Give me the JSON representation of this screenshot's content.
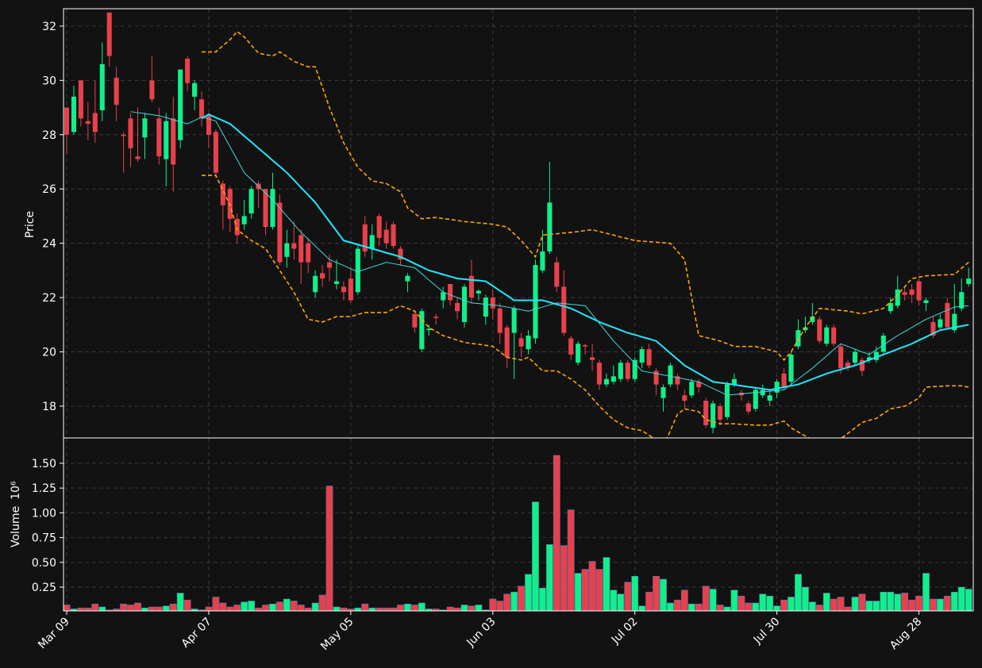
{
  "chart_data": {
    "type": "candlestick",
    "ylabel": "Price",
    "grid": true,
    "up_color": "#0ef18a",
    "down_color": "#e8414b",
    "ylim": [
      16.83,
      32.64
    ],
    "yticks": [
      18,
      20,
      22,
      24,
      26,
      28,
      30,
      32
    ],
    "categories": [
      "Mar 09",
      null,
      null,
      null,
      null,
      null,
      null,
      null,
      null,
      null,
      null,
      null,
      null,
      null,
      null,
      null,
      null,
      null,
      null,
      null,
      "Apr 07",
      null,
      null,
      null,
      null,
      null,
      null,
      null,
      null,
      null,
      null,
      null,
      null,
      null,
      null,
      null,
      null,
      null,
      null,
      null,
      "May 05",
      null,
      null,
      null,
      null,
      null,
      null,
      null,
      null,
      null,
      null,
      null,
      null,
      null,
      null,
      null,
      null,
      null,
      null,
      null,
      "Jun 03",
      null,
      null,
      null,
      null,
      null,
      null,
      null,
      null,
      null,
      null,
      null,
      null,
      null,
      null,
      null,
      null,
      null,
      null,
      null,
      "Jul 02",
      null,
      null,
      null,
      null,
      null,
      null,
      null,
      null,
      null,
      null,
      null,
      null,
      null,
      null,
      null,
      null,
      null,
      null,
      null,
      "Jul 30",
      null,
      null,
      null,
      null,
      null,
      null,
      null,
      null,
      null,
      null,
      null,
      null,
      null,
      null,
      null,
      null,
      null,
      null,
      null,
      "Aug 28",
      null,
      null,
      null,
      null,
      null,
      null,
      null
    ],
    "open": [
      29.0,
      28.1,
      30.0,
      28.5,
      28.8,
      28.9,
      32.5,
      30.1,
      28.0,
      28.6,
      27.2,
      27.9,
      30.0,
      28.6,
      27.1,
      28.6,
      27.8,
      30.8,
      29.4,
      29.3,
      28.7,
      28.1,
      26.2,
      26.0,
      24.9,
      24.7,
      25.1,
      26.2,
      26.0,
      24.6,
      25.5,
      23.5,
      24.0,
      24.3,
      24.0,
      22.2,
      22.9,
      23.3,
      22.5,
      22.4,
      22.7,
      22.2,
      24.7,
      23.8,
      25.0,
      24.5,
      24.7,
      23.8,
      22.6,
      21.4,
      20.1,
      20.8,
      21.3,
      21.9,
      22.5,
      21.8,
      21.1,
      22.8,
      22.15,
      21.3,
      22.0,
      21.6,
      20.9,
      20.7,
      20.5,
      20.1,
      20.5,
      23.0,
      23.7,
      23.3,
      22.4,
      20.5,
      19.6,
      20.25,
      19.8,
      19.6,
      18.8,
      18.9,
      19.0,
      19.6,
      19.0,
      19.6,
      20.1,
      19.3,
      18.3,
      18.8,
      19.1,
      18.4,
      18.4,
      18.9,
      18.2,
      17.2,
      18.0,
      17.6,
      18.8,
      18.5,
      18.1,
      17.9,
      18.4,
      18.2,
      18.5,
      19.2,
      18.9,
      20.2,
      20.8,
      21.1,
      21.2,
      20.3,
      20.9,
      20.2,
      19.6,
      19.6,
      19.7,
      19.7,
      19.7,
      20.0,
      21.5,
      21.7,
      22.2,
      22.3,
      22.6,
      21.8,
      21.1,
      20.9,
      21.8,
      20.8,
      21.6,
      22.5
    ],
    "high": [
      29.0,
      29.8,
      30.0,
      29.2,
      30.0,
      31.4,
      32.5,
      30.5,
      28.1,
      28.8,
      29.0,
      28.8,
      30.9,
      29.0,
      28.8,
      29.4,
      30.4,
      30.9,
      30.0,
      29.6,
      28.8,
      28.2,
      26.3,
      26.1,
      25.1,
      25.6,
      26.1,
      26.3,
      26.0,
      26.6,
      25.8,
      24.5,
      24.8,
      24.5,
      24.2,
      23.0,
      23.2,
      23.6,
      23.4,
      22.6,
      23.1,
      23.9,
      25.0,
      24.7,
      25.1,
      24.8,
      24.8,
      23.9,
      22.9,
      21.5,
      21.6,
      21.0,
      21.4,
      22.4,
      22.5,
      22.0,
      22.5,
      23.4,
      22.3,
      22.1,
      22.3,
      21.8,
      21.0,
      21.7,
      20.7,
      20.8,
      23.4,
      24.5,
      27.0,
      23.5,
      23.0,
      20.6,
      20.4,
      20.3,
      20.3,
      19.7,
      19.2,
      19.5,
      19.7,
      19.7,
      19.8,
      20.2,
      20.3,
      19.4,
      18.8,
      19.6,
      19.2,
      18.6,
      19.0,
      19.0,
      18.3,
      18.2,
      18.1,
      18.9,
      19.2,
      18.6,
      18.2,
      18.7,
      18.8,
      18.6,
      19.0,
      19.4,
      20.0,
      21.2,
      21.3,
      21.8,
      21.3,
      21.0,
      21.0,
      20.3,
      19.7,
      20.1,
      19.8,
      20.0,
      20.2,
      20.7,
      22.0,
      22.8,
      22.4,
      22.5,
      22.7,
      22.0,
      21.3,
      21.4,
      22.0,
      22.5,
      22.7,
      23.1
    ],
    "low": [
      27.3,
      28.0,
      28.3,
      27.8,
      27.7,
      28.5,
      30.5,
      28.5,
      26.6,
      26.8,
      27.0,
      27.1,
      29.2,
      26.9,
      26.1,
      25.9,
      27.5,
      29.6,
      28.9,
      28.3,
      27.5,
      26.4,
      24.5,
      24.4,
      24.0,
      24.5,
      24.9,
      25.3,
      24.3,
      24.5,
      23.2,
      23.1,
      23.4,
      22.5,
      22.9,
      22.0,
      22.4,
      22.6,
      22.3,
      21.9,
      21.8,
      22.1,
      23.5,
      23.4,
      23.9,
      23.8,
      23.8,
      23.2,
      22.2,
      20.7,
      20.0,
      20.6,
      21.0,
      21.6,
      21.7,
      21.2,
      20.9,
      21.8,
      21.9,
      21.0,
      21.2,
      20.3,
      19.4,
      19.0,
      19.8,
      19.9,
      20.3,
      22.9,
      23.6,
      22.2,
      20.6,
      19.7,
      19.5,
      19.9,
      19.3,
      18.6,
      18.7,
      18.8,
      18.9,
      18.9,
      18.9,
      19.4,
      19.4,
      18.4,
      17.8,
      18.7,
      18.6,
      17.9,
      18.3,
      18.5,
      17.2,
      17.0,
      17.3,
      17.5,
      18.7,
      18.2,
      17.7,
      17.8,
      18.3,
      18.0,
      18.3,
      18.6,
      18.8,
      20.1,
      20.7,
      21.0,
      20.3,
      20.2,
      20.2,
      19.2,
      19.3,
      19.5,
      19.1,
      19.6,
      19.6,
      19.9,
      21.4,
      21.6,
      21.9,
      21.8,
      21.7,
      21.5,
      20.5,
      20.8,
      20.8,
      20.7,
      21.5,
      22.4
    ],
    "close": [
      28.0,
      29.4,
      28.6,
      28.4,
      28.1,
      30.6,
      30.9,
      29.1,
      27.95,
      27.5,
      27.1,
      28.6,
      29.3,
      27.2,
      28.5,
      26.9,
      30.4,
      29.9,
      29.9,
      28.6,
      28.0,
      26.6,
      25.4,
      24.9,
      24.3,
      25.0,
      26.0,
      26.0,
      24.6,
      26.0,
      23.3,
      24.0,
      23.8,
      23.3,
      23.3,
      22.8,
      22.7,
      23.1,
      22.6,
      22.2,
      21.9,
      23.8,
      23.7,
      24.3,
      24.2,
      24.0,
      23.9,
      23.4,
      22.8,
      20.9,
      21.5,
      20.85,
      21.25,
      22.2,
      21.9,
      21.5,
      22.4,
      22.0,
      22.25,
      22.0,
      21.6,
      20.7,
      19.8,
      21.6,
      20.2,
      20.6,
      23.2,
      23.7,
      25.5,
      22.4,
      20.7,
      19.9,
      20.3,
      20.2,
      19.7,
      18.8,
      19.0,
      19.1,
      19.6,
      19.0,
      19.7,
      20.1,
      19.5,
      18.8,
      18.7,
      19.5,
      18.8,
      18.2,
      18.9,
      18.7,
      17.3,
      18.1,
      17.5,
      18.8,
      19.0,
      18.4,
      17.8,
      18.6,
      18.6,
      18.4,
      18.9,
      18.7,
      19.9,
      20.8,
      20.9,
      21.3,
      20.4,
      20.9,
      20.3,
      19.4,
      19.4,
      20.0,
      19.3,
      19.8,
      20.0,
      20.6,
      21.8,
      22.3,
      22.1,
      22.1,
      21.9,
      21.9,
      20.6,
      21.2,
      20.9,
      21.4,
      22.2,
      22.7
    ],
    "lines": [
      {
        "color": "#ffa500",
        "width": 1.6,
        "dash": true,
        "values": [
          null,
          null,
          null,
          null,
          null,
          null,
          null,
          null,
          null,
          null,
          null,
          null,
          null,
          null,
          null,
          null,
          null,
          null,
          null,
          31.05,
          31.05,
          31.05,
          31.28,
          31.5,
          31.8,
          31.6,
          31.3,
          31.0,
          30.95,
          30.9,
          31.05,
          30.88,
          30.7,
          30.6,
          30.5,
          30.5,
          29.75,
          29.0,
          28.35,
          27.7,
          27.25,
          26.8,
          26.55,
          26.3,
          26.25,
          26.2,
          26.05,
          25.9,
          25.3,
          25.1,
          24.9,
          24.93,
          24.95,
          24.91,
          24.88,
          24.84,
          24.8,
          24.78,
          24.75,
          24.73,
          24.7,
          24.65,
          24.6,
          24.35,
          24.1,
          23.8,
          23.5,
          24.3,
          24.33,
          24.35,
          24.38,
          24.4,
          24.43,
          24.47,
          24.5,
          24.43,
          24.37,
          24.3,
          24.23,
          24.17,
          24.1,
          24.08,
          24.06,
          24.04,
          24.02,
          24.0,
          23.7,
          23.4,
          22.0,
          20.6,
          20.53,
          20.47,
          20.4,
          20.3,
          20.2,
          20.2,
          20.2,
          20.2,
          20.13,
          20.07,
          20.0,
          19.7,
          20.0,
          20.45,
          20.9,
          21.25,
          21.6,
          21.58,
          21.55,
          21.53,
          21.5,
          21.45,
          21.4,
          21.47,
          21.53,
          21.6,
          21.85,
          22.1,
          22.4,
          22.7,
          22.75,
          22.8,
          22.81,
          22.83,
          22.84,
          22.85,
          23.08,
          23.3
        ]
      },
      {
        "color": "#ffa500",
        "width": 1.6,
        "dash": true,
        "values": [
          null,
          null,
          null,
          null,
          null,
          null,
          null,
          null,
          null,
          null,
          null,
          null,
          null,
          null,
          null,
          null,
          null,
          null,
          null,
          26.5,
          26.5,
          26.5,
          25.95,
          25.4,
          24.5,
          24.3,
          24.1,
          23.95,
          23.8,
          23.4,
          23.0,
          22.6,
          22.2,
          21.7,
          21.2,
          21.15,
          21.1,
          21.2,
          21.3,
          21.3,
          21.3,
          21.38,
          21.45,
          21.45,
          21.45,
          21.45,
          21.58,
          21.7,
          21.6,
          21.5,
          21.2,
          20.9,
          20.75,
          20.6,
          20.52,
          20.43,
          20.35,
          20.31,
          20.28,
          20.24,
          20.2,
          20.0,
          19.8,
          19.75,
          19.7,
          19.8,
          19.55,
          19.3,
          19.3,
          19.3,
          19.15,
          19.0,
          18.8,
          18.6,
          18.3,
          18.0,
          17.75,
          17.5,
          17.35,
          17.2,
          17.15,
          17.1,
          16.93,
          16.75,
          16.5,
          17.1,
          17.7,
          17.9,
          17.85,
          17.8,
          17.5,
          17.43,
          17.35,
          17.35,
          17.35,
          17.33,
          17.32,
          17.3,
          17.3,
          17.3,
          17.38,
          17.45,
          17.2,
          17.05,
          16.9,
          16.75,
          16.6,
          16.6,
          16.6,
          16.8,
          17.0,
          17.2,
          17.4,
          17.48,
          17.55,
          17.73,
          17.9,
          17.95,
          18.0,
          18.15,
          18.3,
          18.7,
          18.72,
          18.73,
          18.75,
          18.75,
          18.75,
          18.7
        ]
      },
      {
        "color": "#3fdcdc",
        "width": 1,
        "dash": false,
        "values": [
          null,
          null,
          null,
          null,
          null,
          null,
          null,
          null,
          null,
          28.85,
          28.81,
          28.78,
          28.74,
          28.7,
          28.63,
          28.55,
          28.48,
          28.4,
          28.52,
          28.65,
          28.58,
          28.5,
          28.03,
          27.55,
          27.08,
          26.6,
          26.35,
          26.1,
          25.85,
          25.6,
          25.3,
          25.0,
          24.7,
          24.4,
          24.15,
          23.9,
          23.65,
          23.4,
          23.29,
          23.18,
          23.06,
          22.95,
          23.04,
          23.13,
          23.21,
          23.3,
          23.25,
          23.2,
          23.15,
          23.1,
          22.88,
          22.65,
          22.43,
          22.2,
          22.1,
          22.0,
          21.9,
          21.8,
          21.78,
          21.75,
          21.73,
          21.7,
          21.65,
          21.6,
          21.55,
          21.5,
          21.58,
          21.65,
          21.73,
          21.8,
          21.78,
          21.75,
          21.73,
          21.7,
          21.38,
          21.05,
          20.73,
          20.4,
          20.13,
          19.85,
          19.58,
          19.3,
          19.25,
          19.2,
          19.15,
          19.1,
          19.05,
          19.0,
          18.95,
          18.9,
          18.78,
          18.65,
          18.53,
          18.4,
          18.43,
          18.45,
          18.48,
          18.5,
          18.53,
          18.55,
          18.58,
          18.6,
          18.8,
          19.0,
          19.2,
          19.4,
          19.63,
          19.85,
          20.08,
          20.3,
          20.2,
          20.1,
          20.0,
          19.9,
          20.08,
          20.25,
          20.43,
          20.6,
          20.75,
          20.9,
          21.05,
          21.2,
          21.31,
          21.43,
          21.54,
          21.65,
          21.68,
          21.7
        ]
      },
      {
        "color": "#1ee8ff",
        "width": 2,
        "dash": false,
        "values": [
          null,
          null,
          null,
          null,
          null,
          null,
          null,
          null,
          null,
          null,
          null,
          null,
          null,
          null,
          null,
          null,
          null,
          null,
          null,
          28.6,
          28.75,
          28.63,
          28.52,
          28.4,
          28.18,
          27.95,
          27.73,
          27.5,
          27.28,
          27.05,
          26.83,
          26.6,
          26.33,
          26.05,
          25.78,
          25.5,
          25.15,
          24.8,
          24.45,
          24.1,
          24.03,
          23.95,
          23.88,
          23.8,
          23.73,
          23.65,
          23.58,
          23.5,
          23.38,
          23.25,
          23.13,
          23.0,
          22.93,
          22.85,
          22.78,
          22.7,
          22.68,
          22.65,
          22.63,
          22.6,
          22.43,
          22.25,
          22.08,
          21.9,
          21.9,
          21.9,
          21.9,
          21.9,
          21.83,
          21.75,
          21.68,
          21.6,
          21.48,
          21.35,
          21.23,
          21.1,
          21.0,
          20.9,
          20.8,
          20.7,
          20.63,
          20.55,
          20.48,
          20.4,
          20.18,
          19.95,
          19.73,
          19.5,
          19.35,
          19.2,
          19.05,
          18.9,
          18.86,
          18.83,
          18.79,
          18.75,
          18.71,
          18.68,
          18.64,
          18.6,
          18.65,
          18.7,
          18.75,
          18.8,
          18.9,
          19.0,
          19.1,
          19.2,
          19.28,
          19.35,
          19.43,
          19.5,
          19.6,
          19.7,
          19.8,
          19.9,
          20.0,
          20.1,
          20.2,
          20.3,
          20.43,
          20.55,
          20.68,
          20.8,
          20.85,
          20.9,
          20.95,
          21.0
        ]
      }
    ],
    "volume": {
      "ylabel": "Volume",
      "offset_label": "10⁶",
      "ylim": [
        0.01,
        1.756
      ],
      "yticks": [
        0.25,
        {
          "value": 0.5,
          "label": "0.50"
        },
        0.75,
        {
          "value": 1,
          "label": "1.00"
        },
        1.25,
        {
          "value": 1.5,
          "label": "1.50"
        }
      ],
      "values": [
        0.07,
        0.03,
        0.04,
        0.04,
        0.08,
        0.05,
        0.02,
        0.03,
        0.08,
        0.07,
        0.09,
        0.04,
        0.05,
        0.05,
        0.06,
        0.08,
        0.19,
        0.12,
        0.03,
        0.02,
        0.05,
        0.15,
        0.09,
        0.05,
        0.07,
        0.1,
        0.11,
        0.04,
        0.07,
        0.08,
        0.1,
        0.13,
        0.11,
        0.07,
        0.04,
        0.09,
        0.17,
        1.27,
        0.05,
        0.04,
        0.03,
        0.04,
        0.08,
        0.04,
        0.04,
        0.04,
        0.04,
        0.07,
        0.08,
        0.07,
        0.09,
        0.03,
        0.03,
        0.02,
        0.05,
        0.04,
        0.07,
        0.06,
        0.07,
        0.02,
        0.13,
        0.11,
        0.18,
        0.2,
        0.26,
        0.38,
        1.11,
        0.24,
        0.68,
        1.58,
        0.67,
        1.03,
        0.39,
        0.43,
        0.51,
        0.43,
        0.55,
        0.22,
        0.18,
        0.3,
        0.36,
        0.06,
        0.2,
        0.36,
        0.33,
        0.09,
        0.12,
        0.22,
        0.08,
        0.08,
        0.26,
        0.23,
        0.07,
        0.05,
        0.22,
        0.16,
        0.09,
        0.09,
        0.18,
        0.16,
        0.06,
        0.12,
        0.15,
        0.38,
        0.25,
        0.1,
        0.07,
        0.19,
        0.13,
        0.15,
        0.05,
        0.15,
        0.18,
        0.11,
        0.11,
        0.2,
        0.2,
        0.18,
        0.19,
        0.12,
        0.16,
        0.39,
        0.13,
        0.13,
        0.16,
        0.2,
        0.25,
        0.23
      ]
    }
  }
}
